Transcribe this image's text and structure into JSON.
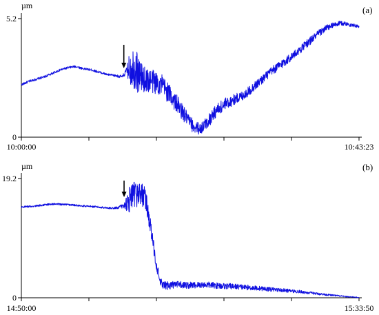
{
  "colors": {
    "series": "#1010e0",
    "axis": "#000000",
    "background": "#ffffff"
  },
  "chart_data": [
    {
      "type": "line",
      "panel_label": "(a)",
      "ylabel": "µm",
      "ylim": [
        0,
        5.2
      ],
      "y_tick_labels": [
        "5.2",
        "0"
      ],
      "x_tick_labels": [
        "10:00:00",
        "10:43:23"
      ],
      "xlim": [
        "10:00:00",
        "10:43:23"
      ],
      "grid": false,
      "annotation": "arrow",
      "arrow_time": "10:13:10",
      "series": [
        {
          "x": [
            "10:00:00",
            "10:01:00",
            "10:02:00",
            "10:03:00",
            "10:04:00",
            "10:05:00",
            "10:06:00",
            "10:07:00",
            "10:08:00",
            "10:09:00",
            "10:10:00",
            "10:11:00",
            "10:12:00",
            "10:13:00",
            "10:13:30",
            "10:14:00",
            "10:14:30",
            "10:15:00",
            "10:15:30",
            "10:16:00",
            "10:17:00",
            "10:18:00",
            "10:19:00",
            "10:20:00",
            "10:21:00",
            "10:22:00",
            "10:23:00",
            "10:24:00",
            "10:25:00",
            "10:26:00",
            "10:27:00",
            "10:28:00",
            "10:29:00",
            "10:30:00",
            "10:31:00",
            "10:32:00",
            "10:33:00",
            "10:34:00",
            "10:35:00",
            "10:36:00",
            "10:37:00",
            "10:38:00",
            "10:39:00",
            "10:40:00",
            "10:41:00",
            "10:42:00",
            "10:43:23"
          ],
          "y": [
            2.3,
            2.45,
            2.55,
            2.65,
            2.8,
            2.95,
            3.05,
            3.1,
            3.0,
            2.95,
            2.85,
            2.75,
            2.7,
            2.65,
            2.9,
            3.05,
            3.1,
            2.8,
            2.6,
            2.5,
            2.45,
            2.3,
            1.9,
            1.45,
            0.95,
            0.5,
            0.35,
            0.7,
            1.15,
            1.4,
            1.6,
            1.75,
            1.95,
            2.25,
            2.55,
            2.85,
            3.1,
            3.35,
            3.6,
            3.9,
            4.2,
            4.5,
            4.75,
            4.9,
            5.0,
            4.95,
            4.85
          ],
          "noise": [
            0.05,
            0.05,
            0.05,
            0.05,
            0.05,
            0.05,
            0.05,
            0.05,
            0.05,
            0.05,
            0.05,
            0.05,
            0.05,
            0.07,
            0.15,
            0.8,
            1.0,
            0.9,
            0.6,
            0.55,
            0.55,
            0.5,
            0.45,
            0.4,
            0.35,
            0.3,
            0.25,
            0.3,
            0.3,
            0.3,
            0.25,
            0.22,
            0.22,
            0.2,
            0.2,
            0.2,
            0.2,
            0.2,
            0.18,
            0.18,
            0.18,
            0.16,
            0.15,
            0.12,
            0.1,
            0.08,
            0.06
          ]
        }
      ]
    },
    {
      "type": "line",
      "panel_label": "(b)",
      "ylabel": "µm",
      "ylim": [
        0,
        19.2
      ],
      "y_tick_labels": [
        "19.2",
        "0"
      ],
      "x_tick_labels": [
        "14:50:00",
        "15:33:50"
      ],
      "xlim": [
        "14:50:00",
        "15:33:50"
      ],
      "grid": false,
      "annotation": "arrow",
      "arrow_time": "15:03:20",
      "series": [
        {
          "x": [
            "14:50:00",
            "14:52:00",
            "14:54:00",
            "14:56:00",
            "14:58:00",
            "15:00:00",
            "15:02:00",
            "15:03:20",
            "15:04:00",
            "15:05:00",
            "15:06:00",
            "15:06:30",
            "15:07:00",
            "15:07:30",
            "15:08:00",
            "15:08:30",
            "15:09:00",
            "15:10:00",
            "15:12:00",
            "15:14:00",
            "15:16:00",
            "15:18:00",
            "15:20:00",
            "15:22:00",
            "15:24:00",
            "15:26:00",
            "15:28:00",
            "15:30:00",
            "15:32:00",
            "15:33:50"
          ],
          "y": [
            14.6,
            14.8,
            15.1,
            15.0,
            14.8,
            14.6,
            14.4,
            14.8,
            15.8,
            16.8,
            16.5,
            13.5,
            9.5,
            5.5,
            2.6,
            1.9,
            2.0,
            2.1,
            2.0,
            2.1,
            1.9,
            1.8,
            1.6,
            1.4,
            1.2,
            1.0,
            0.7,
            0.45,
            0.2,
            0.05
          ],
          "noise": [
            0.15,
            0.15,
            0.15,
            0.15,
            0.15,
            0.15,
            0.15,
            0.4,
            2.2,
            2.2,
            1.8,
            1.6,
            1.2,
            0.9,
            0.7,
            0.7,
            0.7,
            0.6,
            0.55,
            0.5,
            0.5,
            0.45,
            0.4,
            0.35,
            0.3,
            0.25,
            0.2,
            0.15,
            0.1,
            0.05
          ]
        }
      ]
    }
  ]
}
